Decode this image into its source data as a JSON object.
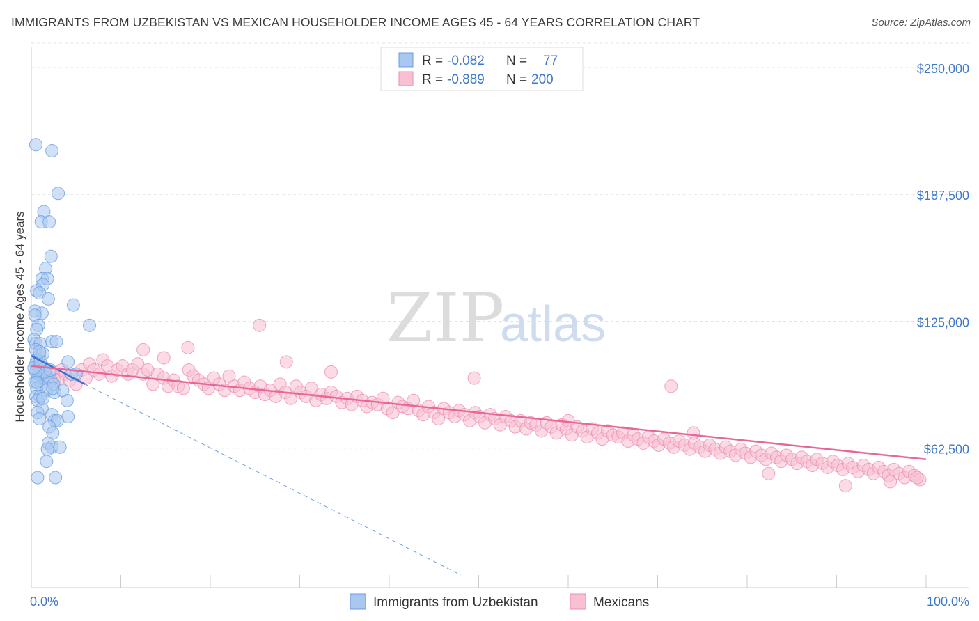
{
  "title": "IMMIGRANTS FROM UZBEKISTAN VS MEXICAN HOUSEHOLDER INCOME AGES 45 - 64 YEARS CORRELATION CHART",
  "source": "Source: ZipAtlas.com",
  "watermark": {
    "zip": "ZIP",
    "atlas": "atlas"
  },
  "legend": {
    "rows": [
      {
        "r_label": "R =",
        "r_value": "-0.082",
        "n_label": "N =",
        "n_value": "77",
        "color": "#a9c8f0",
        "stroke": "#6a9de0"
      },
      {
        "r_label": "R =",
        "r_value": "-0.889",
        "n_label": "N =",
        "n_value": "200",
        "color": "#f8c0d2",
        "stroke": "#ee8fb0"
      }
    ]
  },
  "bottom_legend": [
    {
      "label": "Immigrants from Uzbekistan",
      "color": "#a9c8f0",
      "stroke": "#6a9de0"
    },
    {
      "label": "Mexicans",
      "color": "#f8c0d2",
      "stroke": "#ee8fb0"
    }
  ],
  "chart_data": {
    "type": "scatter",
    "title": "IMMIGRANTS FROM UZBEKISTAN VS MEXICAN HOUSEHOLDER INCOME AGES 45 - 64 YEARS CORRELATION CHART",
    "xlabel": "",
    "ylabel": "Householder Income Ages 45 - 64 years",
    "xlim": [
      0,
      100
    ],
    "ylim": [
      0,
      262000
    ],
    "x_tick_labels": [
      "0.0%",
      "100.0%"
    ],
    "y_ticks": [
      62500,
      125000,
      187500,
      250000
    ],
    "y_tick_labels": [
      "$62,500",
      "$125,000",
      "$187,500",
      "$250,000"
    ],
    "grid": true,
    "legend_position": "top-center",
    "series": [
      {
        "name": "Immigrants from Uzbekistan",
        "color": "#6a9de0",
        "fill": "#a9c8f0",
        "trend": {
          "x": [
            0,
            6
          ],
          "y": [
            108000,
            94000
          ],
          "ext_x": [
            6,
            48
          ],
          "ext_y": [
            94000,
            0
          ]
        },
        "points": [
          [
            0.5,
            212000
          ],
          [
            2.3,
            209000
          ],
          [
            3.0,
            188000
          ],
          [
            1.4,
            179000
          ],
          [
            1.1,
            174000
          ],
          [
            2.0,
            174000
          ],
          [
            2.2,
            157000
          ],
          [
            1.6,
            151000
          ],
          [
            1.2,
            146000
          ],
          [
            1.8,
            146000
          ],
          [
            1.3,
            143000
          ],
          [
            0.6,
            140000
          ],
          [
            0.9,
            139000
          ],
          [
            1.9,
            136000
          ],
          [
            0.4,
            130000
          ],
          [
            4.7,
            133000
          ],
          [
            1.2,
            129000
          ],
          [
            0.4,
            128000
          ],
          [
            0.8,
            123000
          ],
          [
            0.6,
            121000
          ],
          [
            0.3,
            116000
          ],
          [
            0.5,
            114000
          ],
          [
            1.0,
            114000
          ],
          [
            2.3,
            115000
          ],
          [
            2.8,
            115000
          ],
          [
            0.5,
            111000
          ],
          [
            0.9,
            108000
          ],
          [
            1.3,
            109000
          ],
          [
            0.6,
            106000
          ],
          [
            0.5,
            104000
          ],
          [
            1.0,
            103000
          ],
          [
            1.5,
            102000
          ],
          [
            4.1,
            105000
          ],
          [
            0.8,
            99000
          ],
          [
            1.4,
            98000
          ],
          [
            0.7,
            97000
          ],
          [
            1.8,
            97000
          ],
          [
            2.2,
            96000
          ],
          [
            0.4,
            95000
          ],
          [
            1.1,
            93000
          ],
          [
            0.6,
            92000
          ],
          [
            1.7,
            91000
          ],
          [
            2.6,
            90000
          ],
          [
            0.5,
            88000
          ],
          [
            1.0,
            88000
          ],
          [
            0.7,
            86000
          ],
          [
            4.0,
            86000
          ],
          [
            1.2,
            82000
          ],
          [
            0.7,
            80000
          ],
          [
            2.3,
            79000
          ],
          [
            0.9,
            77000
          ],
          [
            4.1,
            78000
          ],
          [
            2.6,
            76000
          ],
          [
            2.9,
            76000
          ],
          [
            2.0,
            73000
          ],
          [
            2.4,
            70000
          ],
          [
            1.9,
            65000
          ],
          [
            2.3,
            63000
          ],
          [
            3.2,
            63000
          ],
          [
            1.8,
            62000
          ],
          [
            1.7,
            56000
          ],
          [
            0.7,
            48000
          ],
          [
            2.7,
            48000
          ],
          [
            1.5,
            100000
          ],
          [
            0.5,
            100000
          ],
          [
            2.5,
            94000
          ],
          [
            6.5,
            123000
          ],
          [
            4.5,
            99000
          ],
          [
            3.5,
            91000
          ],
          [
            0.3,
            102000
          ],
          [
            1.0,
            105000
          ],
          [
            0.6,
            95000
          ],
          [
            2.1,
            101000
          ],
          [
            1.3,
            87000
          ],
          [
            0.9,
            110000
          ],
          [
            2.4,
            92000
          ],
          [
            5.0,
            99000
          ]
        ]
      },
      {
        "name": "Mexicans",
        "color": "#ee8fb0",
        "fill": "#f8c0d2",
        "trend": {
          "x": [
            0,
            100
          ],
          "y": [
            103000,
            57000
          ]
        },
        "points": [
          [
            0.8,
            102000
          ],
          [
            1.0,
            98000
          ],
          [
            1.4,
            97000
          ],
          [
            2.2,
            100000
          ],
          [
            2.6,
            97000
          ],
          [
            3.0,
            96000
          ],
          [
            3.4,
            101000
          ],
          [
            3.8,
            99000
          ],
          [
            4.3,
            96000
          ],
          [
            5.0,
            94000
          ],
          [
            5.6,
            101000
          ],
          [
            6.1,
            97000
          ],
          [
            6.5,
            104000
          ],
          [
            7.0,
            101000
          ],
          [
            7.6,
            99000
          ],
          [
            8.0,
            106000
          ],
          [
            8.5,
            103000
          ],
          [
            9.0,
            98000
          ],
          [
            9.6,
            101000
          ],
          [
            10.2,
            103000
          ],
          [
            10.8,
            99000
          ],
          [
            11.3,
            101000
          ],
          [
            11.9,
            104000
          ],
          [
            12.5,
            99000
          ],
          [
            13.0,
            101000
          ],
          [
            13.6,
            94000
          ],
          [
            14.1,
            99000
          ],
          [
            14.8,
            97000
          ],
          [
            15.3,
            93000
          ],
          [
            15.9,
            96000
          ],
          [
            16.4,
            93000
          ],
          [
            17.0,
            92000
          ],
          [
            17.6,
            101000
          ],
          [
            18.1,
            98000
          ],
          [
            18.7,
            96000
          ],
          [
            19.3,
            94000
          ],
          [
            19.8,
            92000
          ],
          [
            20.4,
            97000
          ],
          [
            21.0,
            94000
          ],
          [
            21.6,
            91000
          ],
          [
            22.1,
            98000
          ],
          [
            22.7,
            93000
          ],
          [
            23.3,
            91000
          ],
          [
            23.8,
            95000
          ],
          [
            24.4,
            92000
          ],
          [
            25.0,
            90000
          ],
          [
            25.6,
            93000
          ],
          [
            26.1,
            89000
          ],
          [
            26.7,
            91000
          ],
          [
            27.3,
            88000
          ],
          [
            27.8,
            94000
          ],
          [
            28.4,
            90000
          ],
          [
            29.0,
            87000
          ],
          [
            29.6,
            93000
          ],
          [
            30.1,
            90000
          ],
          [
            30.7,
            88000
          ],
          [
            31.3,
            92000
          ],
          [
            31.8,
            86000
          ],
          [
            32.4,
            89000
          ],
          [
            33.0,
            87000
          ],
          [
            33.5,
            90000
          ],
          [
            34.1,
            88000
          ],
          [
            34.7,
            85000
          ],
          [
            35.3,
            87000
          ],
          [
            35.8,
            84000
          ],
          [
            36.4,
            88000
          ],
          [
            37.0,
            86000
          ],
          [
            37.5,
            83000
          ],
          [
            38.1,
            85000
          ],
          [
            38.7,
            84000
          ],
          [
            39.3,
            87000
          ],
          [
            39.8,
            82000
          ],
          [
            40.4,
            80000
          ],
          [
            41.0,
            85000
          ],
          [
            41.5,
            83000
          ],
          [
            42.1,
            82000
          ],
          [
            42.7,
            86000
          ],
          [
            43.3,
            81000
          ],
          [
            43.8,
            79000
          ],
          [
            44.4,
            83000
          ],
          [
            45.0,
            80000
          ],
          [
            45.5,
            77000
          ],
          [
            46.1,
            82000
          ],
          [
            46.7,
            80000
          ],
          [
            47.3,
            78000
          ],
          [
            47.8,
            81000
          ],
          [
            48.4,
            79000
          ],
          [
            49.0,
            76000
          ],
          [
            49.6,
            80000
          ],
          [
            50.1,
            78000
          ],
          [
            50.7,
            75000
          ],
          [
            51.3,
            79000
          ],
          [
            51.8,
            77000
          ],
          [
            52.4,
            74000
          ],
          [
            53.0,
            78000
          ],
          [
            53.6,
            76000
          ],
          [
            54.1,
            73000
          ],
          [
            54.7,
            76000
          ],
          [
            55.3,
            72000
          ],
          [
            55.8,
            75000
          ],
          [
            56.4,
            74000
          ],
          [
            57.0,
            71000
          ],
          [
            57.6,
            75000
          ],
          [
            58.1,
            73000
          ],
          [
            58.7,
            70000
          ],
          [
            59.3,
            74000
          ],
          [
            59.8,
            72000
          ],
          [
            60.4,
            69000
          ],
          [
            61.0,
            73000
          ],
          [
            61.6,
            71000
          ],
          [
            62.1,
            68000
          ],
          [
            62.7,
            72000
          ],
          [
            63.3,
            70000
          ],
          [
            63.8,
            67000
          ],
          [
            64.4,
            71000
          ],
          [
            65.0,
            69000
          ],
          [
            65.6,
            68000
          ],
          [
            66.1,
            70000
          ],
          [
            66.7,
            66000
          ],
          [
            67.3,
            69000
          ],
          [
            67.8,
            67000
          ],
          [
            68.4,
            65000
          ],
          [
            69.0,
            68000
          ],
          [
            69.6,
            66000
          ],
          [
            70.1,
            64000
          ],
          [
            70.7,
            67000
          ],
          [
            71.3,
            65000
          ],
          [
            71.8,
            63000
          ],
          [
            72.4,
            66000
          ],
          [
            73.0,
            64000
          ],
          [
            73.6,
            62000
          ],
          [
            74.1,
            65000
          ],
          [
            74.7,
            63000
          ],
          [
            75.3,
            61000
          ],
          [
            75.8,
            64000
          ],
          [
            76.4,
            62000
          ],
          [
            77.0,
            60000
          ],
          [
            77.6,
            63000
          ],
          [
            78.1,
            61000
          ],
          [
            78.7,
            59000
          ],
          [
            79.3,
            62000
          ],
          [
            79.8,
            60000
          ],
          [
            80.4,
            58000
          ],
          [
            81.0,
            61000
          ],
          [
            81.6,
            59000
          ],
          [
            82.1,
            57000
          ],
          [
            82.7,
            60000
          ],
          [
            83.3,
            58000
          ],
          [
            83.8,
            56000
          ],
          [
            84.4,
            59000
          ],
          [
            85.0,
            57000
          ],
          [
            85.6,
            55000
          ],
          [
            86.1,
            58000
          ],
          [
            86.7,
            56000
          ],
          [
            87.3,
            54000
          ],
          [
            87.8,
            57000
          ],
          [
            88.4,
            55000
          ],
          [
            89.0,
            53000
          ],
          [
            89.6,
            56000
          ],
          [
            90.1,
            54000
          ],
          [
            90.7,
            52000
          ],
          [
            91.3,
            55000
          ],
          [
            91.8,
            53000
          ],
          [
            92.4,
            51000
          ],
          [
            93.0,
            54000
          ],
          [
            93.6,
            52000
          ],
          [
            94.1,
            50000
          ],
          [
            94.7,
            53000
          ],
          [
            95.3,
            51000
          ],
          [
            95.8,
            49000
          ],
          [
            96.4,
            52000
          ],
          [
            97.0,
            50000
          ],
          [
            97.6,
            48000
          ],
          [
            98.1,
            51000
          ],
          [
            98.7,
            49000
          ],
          [
            99.3,
            47000
          ],
          [
            25.5,
            123000
          ],
          [
            12.5,
            111000
          ],
          [
            17.5,
            112000
          ],
          [
            14.8,
            107000
          ],
          [
            28.5,
            105000
          ],
          [
            33.5,
            100000
          ],
          [
            49.5,
            97000
          ],
          [
            71.5,
            93000
          ],
          [
            82.4,
            50000
          ],
          [
            74.0,
            70000
          ],
          [
            60.0,
            76000
          ],
          [
            91.0,
            44000
          ],
          [
            96.0,
            46000
          ],
          [
            99.0,
            48000
          ]
        ]
      }
    ]
  }
}
